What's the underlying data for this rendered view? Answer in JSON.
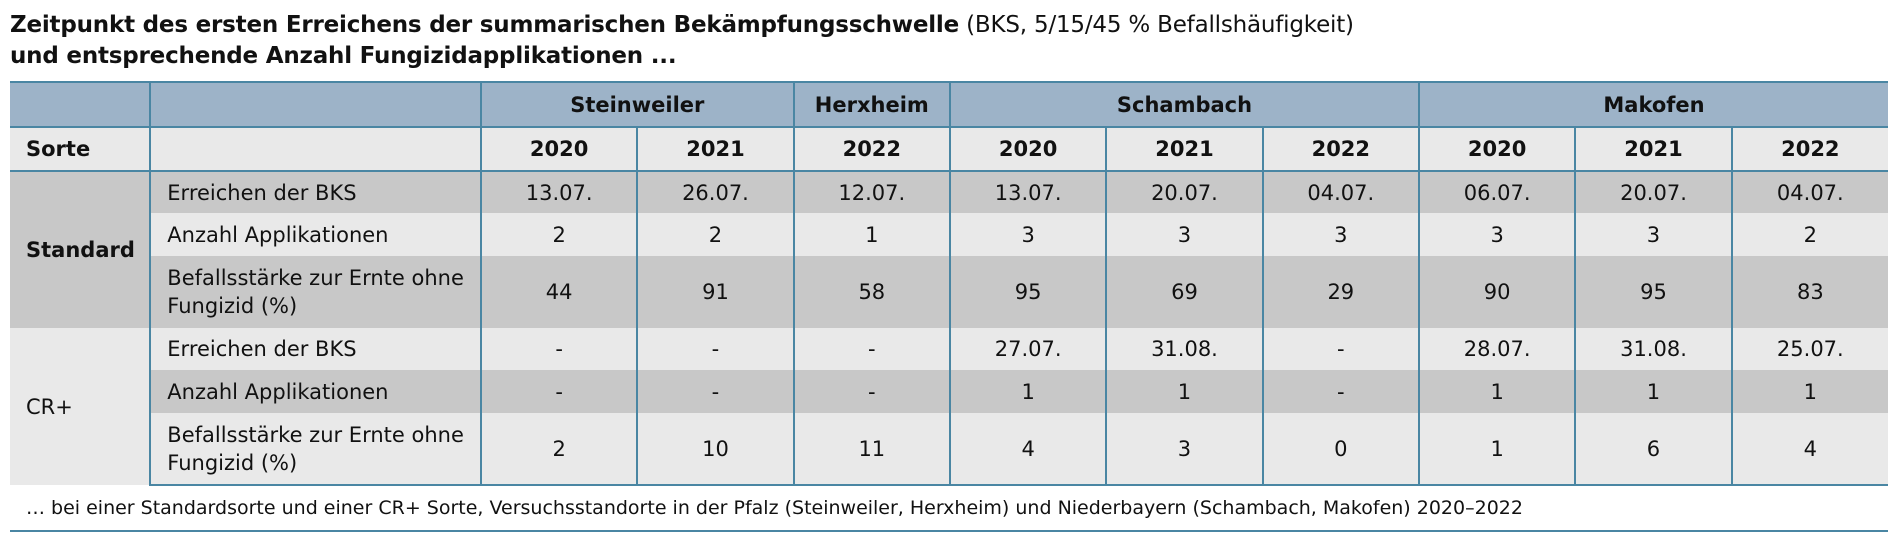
{
  "title": {
    "bold_part": "Zeitpunkt des ersten Erreichens der summarischen Bekämpfungsschwelle",
    "normal_part": "(BKS, 5/15/45 % Befallshäufigkeit)",
    "line2": "und entsprechende Anzahl Fungizidapplikationen ..."
  },
  "table": {
    "locations": [
      "Steinweiler",
      "Herxheim",
      "Schambach",
      "Makofen"
    ],
    "sorte_label": "Sorte",
    "years": [
      "2020",
      "2021",
      "2022",
      "2020",
      "2021",
      "2022",
      "2020",
      "2021",
      "2022"
    ],
    "groups": [
      {
        "name": "Standard",
        "rows": [
          {
            "label": "Erreichen der BKS",
            "values": [
              "13.07.",
              "26.07.",
              "12.07.",
              "13.07.",
              "20.07.",
              "04.07.",
              "06.07.",
              "20.07.",
              "04.07."
            ]
          },
          {
            "label": "Anzahl Applikationen",
            "values": [
              "2",
              "2",
              "1",
              "3",
              "3",
              "3",
              "3",
              "3",
              "2"
            ]
          },
          {
            "label": "Befallsstärke zur Ernte ohne Fungizid (%)",
            "values": [
              "44",
              "91",
              "58",
              "95",
              "69",
              "29",
              "90",
              "95",
              "83"
            ]
          }
        ]
      },
      {
        "name": "CR+",
        "rows": [
          {
            "label": "Erreichen der BKS",
            "values": [
              "-",
              "-",
              "-",
              "27.07.",
              "31.08.",
              "-",
              "28.07.",
              "31.08.",
              "25.07."
            ]
          },
          {
            "label": "Anzahl Applikationen",
            "values": [
              "-",
              "-",
              "-",
              "1",
              "1",
              "-",
              "1",
              "1",
              "1"
            ]
          },
          {
            "label": "Befallsstärke zur Ernte ohne Fungizid (%)",
            "values": [
              "2",
              "10",
              "11",
              "4",
              "3",
              "0",
              "1",
              "6",
              "4"
            ]
          }
        ]
      }
    ]
  },
  "footnote": "… bei einer Standardsorte und einer CR+ Sorte, Versuchsstandorte in der Pfalz (Steinweiler, Herxheim) und Niederbayern (Schambach, Makofen) 2020–2022",
  "colors": {
    "header_bg": "#9db3c8",
    "rule": "#4a86a3",
    "shade_dark": "#c8c8c8",
    "shade_light": "#e9e9e9"
  }
}
